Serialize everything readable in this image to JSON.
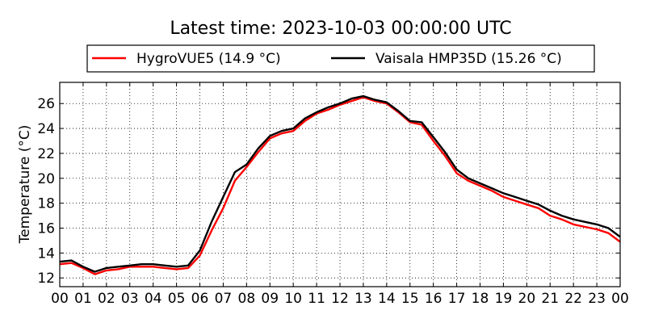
{
  "chart_data": {
    "type": "line",
    "title": "Latest time: 2023-10-03 00:00:00 UTC",
    "ylabel": "Temperature (°C)",
    "xlabel": "",
    "xlim": [
      0,
      24
    ],
    "ylim": [
      11.3,
      27.7
    ],
    "grid": true,
    "legend_position": "top",
    "x_tick_labels": [
      "00",
      "01",
      "02",
      "03",
      "04",
      "05",
      "06",
      "07",
      "08",
      "09",
      "10",
      "11",
      "12",
      "13",
      "14",
      "15",
      "16",
      "17",
      "18",
      "19",
      "20",
      "21",
      "22",
      "23",
      "00"
    ],
    "y_ticks": [
      12,
      14,
      16,
      18,
      20,
      22,
      24,
      26
    ],
    "x_hours": [
      0,
      0.5,
      1,
      1.5,
      2,
      2.5,
      3,
      3.5,
      4,
      4.5,
      5,
      5.5,
      6,
      6.5,
      7,
      7.5,
      8,
      8.5,
      9,
      9.5,
      10,
      10.5,
      11,
      11.5,
      12,
      12.5,
      13,
      13.5,
      14,
      14.5,
      15,
      15.5,
      16,
      16.5,
      17,
      17.5,
      18,
      18.5,
      19,
      19.5,
      20,
      20.5,
      21,
      21.5,
      22,
      22.5,
      23,
      23.5,
      24
    ],
    "series": [
      {
        "name": "HygroVUE5 (14.9 °C)",
        "color": "#ff0000",
        "values": [
          13.1,
          13.2,
          12.8,
          12.3,
          12.6,
          12.7,
          12.9,
          12.9,
          12.9,
          12.8,
          12.7,
          12.8,
          13.8,
          15.8,
          17.6,
          19.8,
          20.9,
          22.1,
          23.2,
          23.6,
          23.8,
          24.6,
          25.2,
          25.5,
          25.9,
          26.2,
          26.5,
          26.2,
          26.0,
          25.3,
          24.5,
          24.3,
          23.0,
          21.8,
          20.4,
          19.8,
          19.4,
          19.0,
          18.5,
          18.2,
          17.9,
          17.6,
          17.0,
          16.7,
          16.3,
          16.1,
          15.9,
          15.6,
          14.9
        ]
      },
      {
        "name": "Vaisala HMP35D (15.26 °C)",
        "color": "#000000",
        "values": [
          13.3,
          13.4,
          12.9,
          12.5,
          12.8,
          12.9,
          13.0,
          13.1,
          13.1,
          13.0,
          12.9,
          13.0,
          14.2,
          16.5,
          18.5,
          20.5,
          21.1,
          22.4,
          23.4,
          23.8,
          24.0,
          24.8,
          25.3,
          25.7,
          26.0,
          26.4,
          26.6,
          26.3,
          26.1,
          25.4,
          24.6,
          24.5,
          23.3,
          22.1,
          20.7,
          20.0,
          19.6,
          19.2,
          18.8,
          18.5,
          18.2,
          17.9,
          17.4,
          17.0,
          16.7,
          16.5,
          16.3,
          16.0,
          15.3
        ]
      }
    ]
  }
}
